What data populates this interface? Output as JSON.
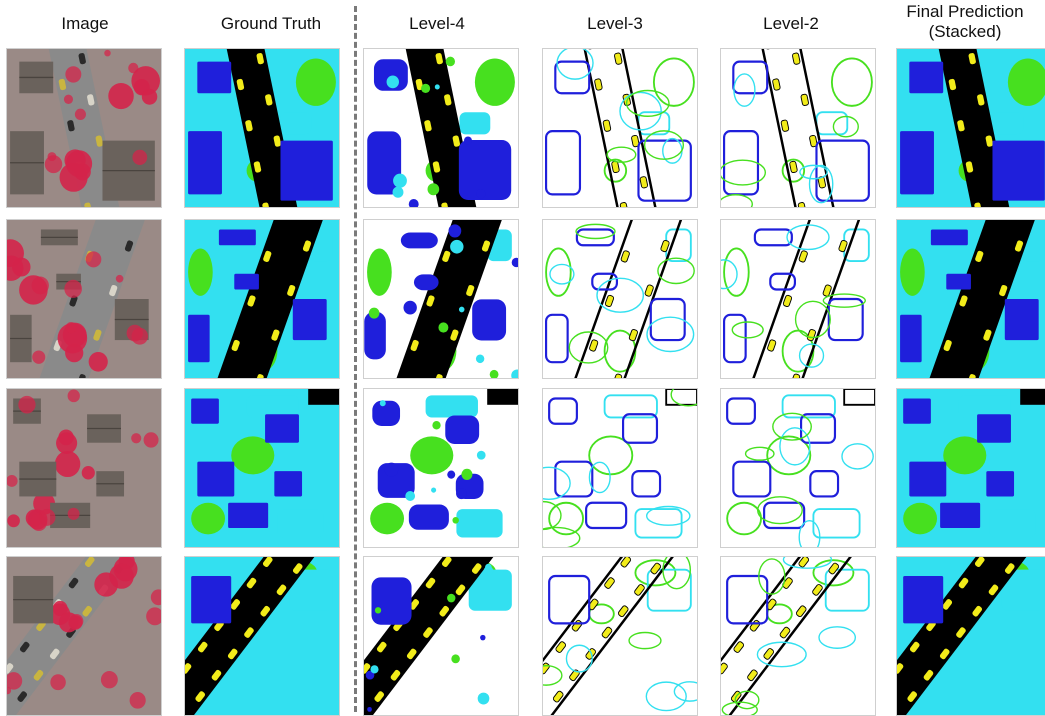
{
  "figure": {
    "column_headers": [
      {
        "id": "image",
        "label": "Image"
      },
      {
        "id": "ground-truth",
        "label": "Ground Truth"
      },
      {
        "id": "level-4",
        "label": "Level-4"
      },
      {
        "id": "level-3",
        "label": "Level-3"
      },
      {
        "id": "level-2",
        "label": "Level-2"
      },
      {
        "id": "final",
        "label": "Final Prediction",
        "label2": "(Stacked)"
      }
    ],
    "class_colors": {
      "building": "#1f1fdb",
      "low_vegetation": "#33e0f0",
      "tree": "#47e01f",
      "car": "#f2ec1a",
      "impervious": "#000000",
      "background": "#ffffff",
      "photo_road": "#8a8a8a",
      "photo_tree": "#d4244a",
      "photo_roof": "#6a625c"
    },
    "rows": 4
  }
}
